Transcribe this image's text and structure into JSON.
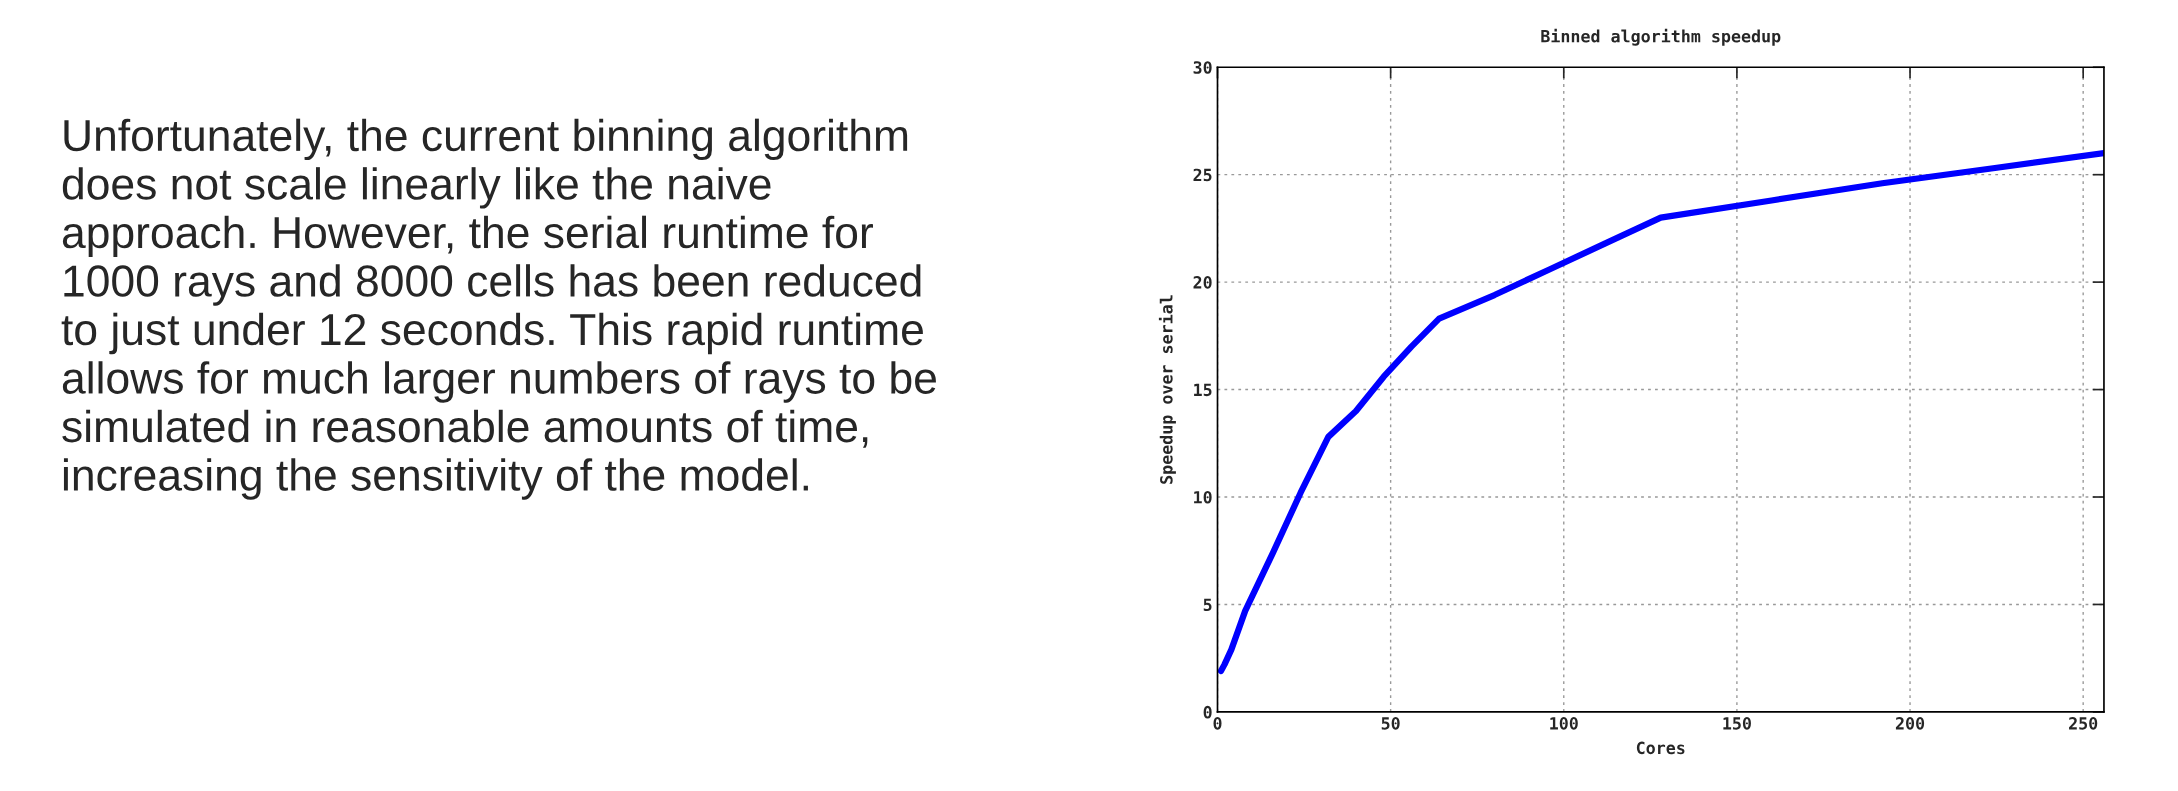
{
  "chart_data": {
    "type": "line",
    "title": "Binned algorithm speedup",
    "xlabel": "Cores",
    "ylabel": "Speedup over serial",
    "annotations": [
      "Unfortunately, the current binning algorithm\ndoes not scale linearly like the naive\napproach. However, the serial runtime for\n1000 rays and 8000 cells has been reduced\nto just under 12 seconds. This rapid runtime\nallows for much larger numbers of rays to be\nsimulated in reasonable amounts of time,\nincreasing the sensitivity of the model."
    ],
    "series": [
      {
        "color": "#0000ff",
        "x": [
          1,
          2,
          4,
          8,
          16,
          24,
          32,
          40,
          48,
          56,
          64,
          80,
          96,
          112,
          128,
          160,
          192,
          224,
          256
        ],
        "values": [
          1.9,
          2.2,
          2.9,
          4.7,
          7.4,
          10.2,
          12.8,
          14.0,
          15.6,
          17.0,
          18.3,
          19.4,
          20.6,
          21.8,
          23.0,
          23.8,
          24.6,
          25.3,
          26.0
        ]
      }
    ],
    "xlim": [
      0,
      256
    ],
    "xticks": [
      0,
      50,
      100,
      150,
      200,
      250
    ],
    "ylim": [
      0,
      30
    ],
    "yticks": [
      0,
      5,
      10,
      15,
      20,
      25,
      30
    ],
    "grid": true,
    "legend": false,
    "marker": "none",
    "line_style": "solid"
  }
}
